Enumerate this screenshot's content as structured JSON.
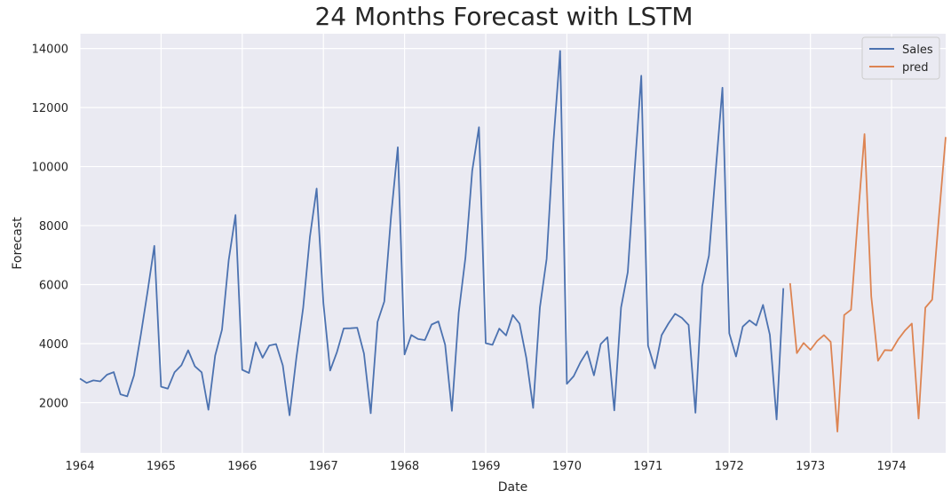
{
  "chart_data": {
    "type": "line",
    "title": "24 Months Forecast with LSTM",
    "xlabel": "Date",
    "ylabel": "Forecast",
    "xlim": [
      "1964-01",
      "1974-09"
    ],
    "ylim": [
      300,
      14500
    ],
    "grid": true,
    "legend_position": "top-right",
    "x_ticks": [
      "1964",
      "1965",
      "1966",
      "1967",
      "1968",
      "1969",
      "1970",
      "1971",
      "1972",
      "1973",
      "1974"
    ],
    "y_ticks": [
      2000,
      4000,
      6000,
      8000,
      10000,
      12000,
      14000
    ],
    "y_tick_labels": [
      "2000",
      "4000",
      "6000",
      "8000",
      "10000",
      "12000",
      "14000"
    ],
    "series": [
      {
        "name": "Sales",
        "color": "#4c72b0",
        "start": "1964-01",
        "values": [
          2815,
          2672,
          2755,
          2721,
          2946,
          3036,
          2282,
          2212,
          2922,
          4301,
          5764,
          7312,
          2541,
          2475,
          3031,
          3266,
          3776,
          3230,
          3028,
          1759,
          3595,
          4474,
          6838,
          8357,
          3113,
          3006,
          4047,
          3523,
          3937,
          3986,
          3260,
          1573,
          3528,
          5211,
          7614,
          9254,
          5375,
          3088,
          3718,
          4514,
          4520,
          4539,
          3663,
          1643,
          4739,
          5428,
          8314,
          10651,
          3633,
          4292,
          4154,
          4121,
          4647,
          4753,
          3965,
          1723,
          5048,
          6922,
          9858,
          11331,
          4016,
          3957,
          4510,
          4276,
          4968,
          4677,
          3523,
          1821,
          5222,
          6872,
          10803,
          13916,
          2639,
          2899,
          3370,
          3740,
          2927,
          3986,
          4217,
          1738,
          5221,
          6424,
          9842,
          13076,
          3934,
          3162,
          4286,
          4676,
          5010,
          4874,
          4633,
          1659,
          5951,
          6981,
          9851,
          12670,
          4348,
          3564,
          4577,
          4788,
          4618,
          5312,
          4298,
          1431,
          5877
        ]
      },
      {
        "name": "pred",
        "color": "#dd8452",
        "start": "1972-10",
        "values": [
          6050,
          3680,
          4020,
          3790,
          4090,
          4290,
          4060,
          1020,
          4970,
          5150,
          8200,
          11100,
          5600,
          3420,
          3780,
          3770,
          4150,
          4450,
          4680,
          1460,
          5220,
          5490,
          8300,
          11000
        ]
      }
    ]
  }
}
